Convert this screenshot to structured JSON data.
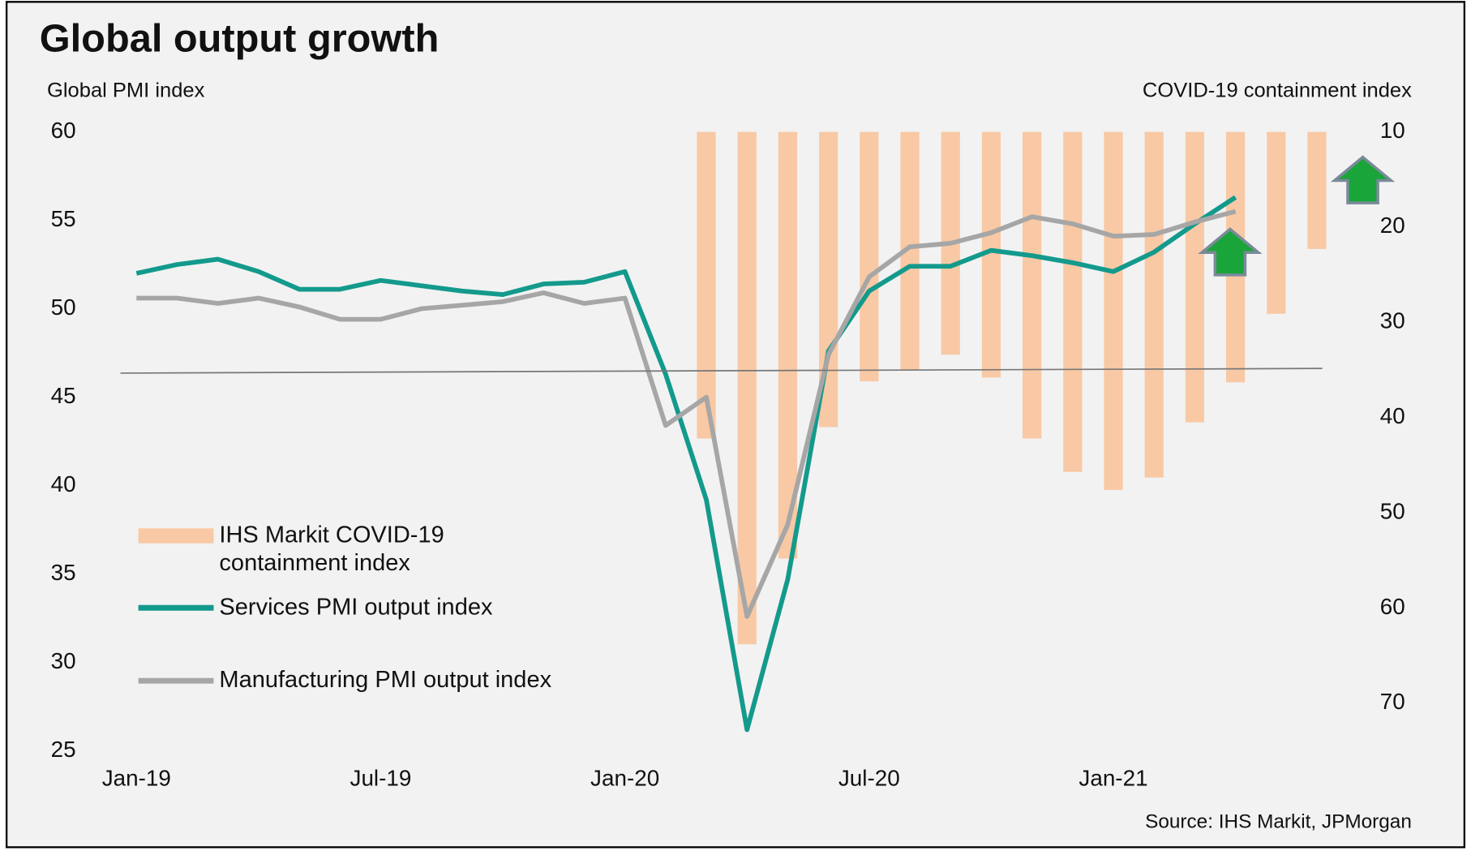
{
  "chart_data": {
    "type": "bar+line",
    "title": "Global output growth",
    "y_label": "Global PMI index",
    "y2_label": "COVID-19 containment index",
    "source": "Source: IHS Markit, JPMorgan",
    "categories": [
      "Jan-19",
      null,
      null,
      null,
      null,
      null,
      "Jul-19",
      null,
      null,
      null,
      null,
      null,
      "Jan-20",
      null,
      null,
      null,
      null,
      null,
      "Jul-20",
      null,
      null,
      null,
      null,
      null,
      "Jan-21",
      null,
      null,
      null,
      null,
      null
    ],
    "series": [
      {
        "name": "IHS Markit COVID-19 containment index",
        "type": "bar",
        "axis": "y2",
        "color": "#f8c9a4",
        "values": [
          null,
          null,
          null,
          null,
          null,
          null,
          null,
          null,
          null,
          null,
          null,
          null,
          null,
          null,
          42.2,
          63.8,
          54.8,
          41,
          36.2,
          35,
          33.4,
          35.8,
          42.2,
          45.7,
          47.6,
          46.3,
          40.5,
          36.3,
          29.1,
          22.3
        ]
      },
      {
        "name": "Services PMI output index",
        "type": "line",
        "color": "#139a8c",
        "values": [
          52.0,
          52.5,
          52.8,
          52.1,
          51.1,
          51.1,
          51.6,
          51.3,
          51.0,
          50.8,
          51.4,
          51.5,
          52.1,
          46.3,
          39.2,
          26.2,
          34.7,
          47.6,
          51.0,
          52.4,
          52.4,
          53.3,
          53.0,
          52.6,
          52.1,
          53.2,
          54.8,
          56.3,
          null,
          null
        ]
      },
      {
        "name": "Manufacturing PMI output index",
        "type": "line",
        "color": "#a6a6a6",
        "values": [
          50.6,
          50.6,
          50.3,
          50.6,
          50.1,
          49.4,
          49.4,
          50.0,
          50.2,
          50.4,
          50.9,
          50.3,
          50.6,
          43.4,
          45.0,
          32.6,
          37.8,
          47.4,
          51.8,
          53.5,
          53.7,
          54.3,
          55.2,
          54.8,
          54.1,
          54.2,
          54.9,
          55.5,
          null,
          null
        ]
      }
    ],
    "ylim": [
      25,
      60
    ],
    "yticks": [
      25,
      30,
      35,
      40,
      45,
      50,
      55,
      60
    ],
    "y2lim": [
      75,
      10
    ],
    "y2ticks": [
      10,
      20,
      30,
      40,
      50,
      60,
      70
    ],
    "legend": "lower left"
  }
}
